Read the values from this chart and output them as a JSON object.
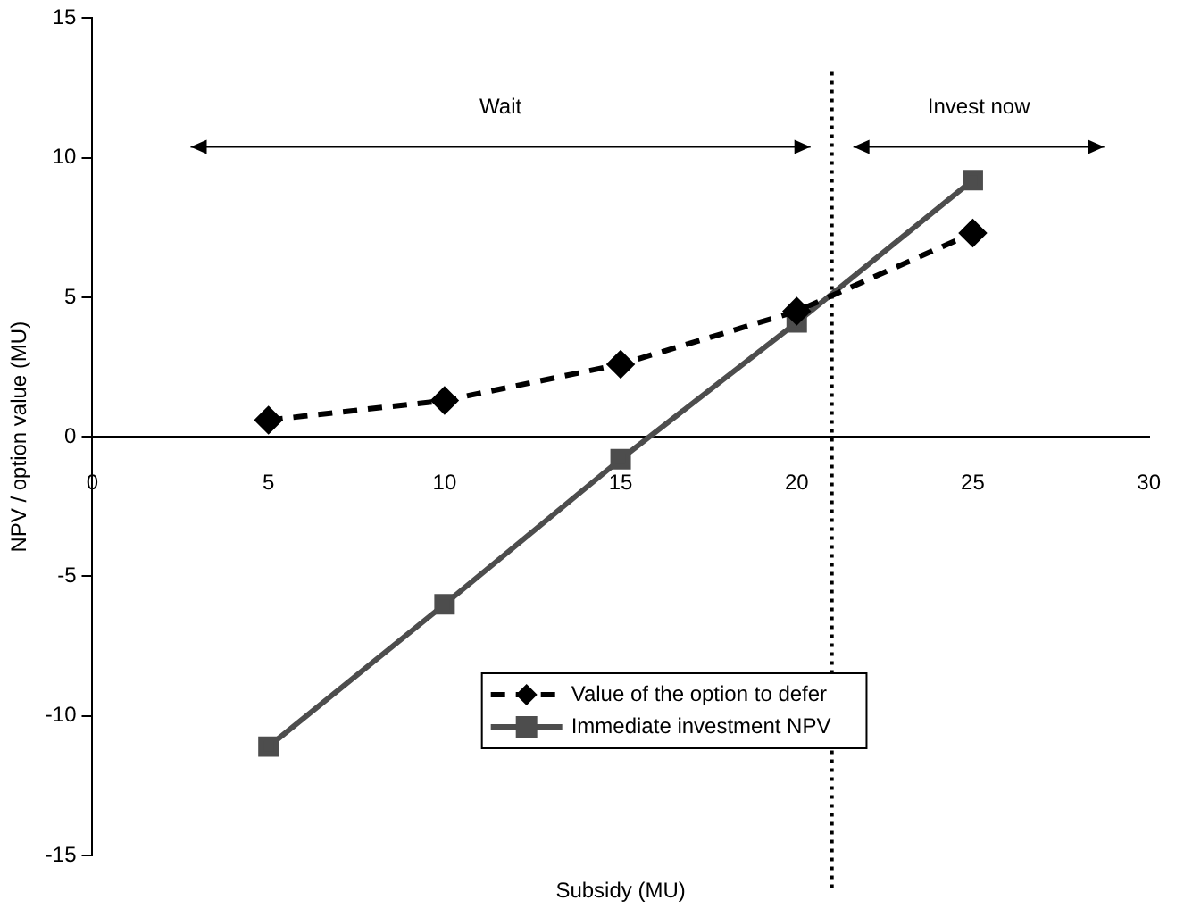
{
  "chart_data": {
    "type": "line",
    "xlabel": "Subsidy (MU)",
    "ylabel": "NPV / option value (MU)",
    "x": [
      5,
      10,
      15,
      20,
      25
    ],
    "series": [
      {
        "name": "Value of the option to defer",
        "color": "#000000",
        "values": [
          0.6,
          1.3,
          2.6,
          4.5,
          7.3
        ],
        "marker": "diamond",
        "line_style": "dashed"
      },
      {
        "name": "Immediate investment NPV",
        "color": "#4d4d4d",
        "values": [
          -11.1,
          -6,
          -0.8,
          4.1,
          9.2
        ],
        "marker": "square",
        "line_style": "solid"
      }
    ],
    "xlim": [
      0,
      30
    ],
    "xticks": [
      0,
      5,
      10,
      15,
      20,
      25,
      30
    ],
    "ylim": [
      -15,
      15
    ],
    "yticks": [
      -15,
      -10,
      -5,
      0,
      5,
      10,
      15
    ],
    "grid": false,
    "legend": "bottom",
    "ref_lines": [
      {
        "axis": "x",
        "value": 21,
        "color": "#000000",
        "line_style": "dotted"
      }
    ],
    "annotations": [
      "Wait",
      "Invest now"
    ]
  }
}
